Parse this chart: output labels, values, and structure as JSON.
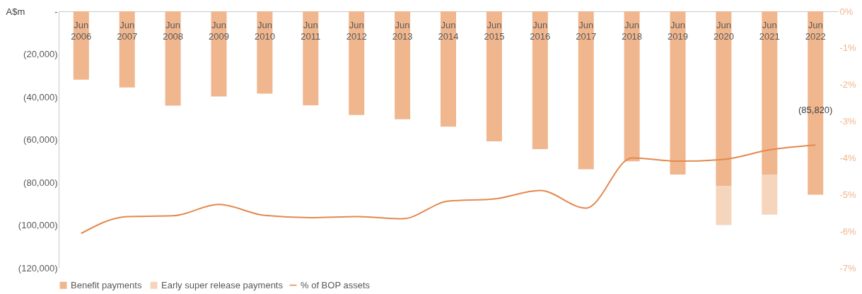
{
  "chart_data": {
    "type": "bar",
    "stacked": true,
    "ylabel": "A$m",
    "legend": "bottom",
    "categories": [
      "Jun 2006",
      "Jun 2007",
      "Jun 2008",
      "Jun 2009",
      "Jun 2010",
      "Jun 2011",
      "Jun 2012",
      "Jun 2013",
      "Jun 2014",
      "Jun 2015",
      "Jun 2016",
      "Jun 2017",
      "Jun 2018",
      "Jun 2019",
      "Jun 2020",
      "Jun 2021",
      "Jun 2022"
    ],
    "ylim": [
      -120000,
      0
    ],
    "yticks": [
      {
        "value": 0,
        "label": "-"
      },
      {
        "value": -20000,
        "label": "(20,000)"
      },
      {
        "value": -40000,
        "label": "(40,000)"
      },
      {
        "value": -60000,
        "label": "(60,000)"
      },
      {
        "value": -80000,
        "label": "(80,000)"
      },
      {
        "value": -100000,
        "label": "(100,000)"
      },
      {
        "value": -120000,
        "label": "(120,000)"
      }
    ],
    "y2lim": [
      -7,
      0
    ],
    "y2ticks": [
      {
        "value": 0,
        "label": "0%"
      },
      {
        "value": -1,
        "label": "-1%"
      },
      {
        "value": -2,
        "label": "-2%"
      },
      {
        "value": -3,
        "label": "-3%"
      },
      {
        "value": -4,
        "label": "-4%"
      },
      {
        "value": -5,
        "label": "-5%"
      },
      {
        "value": -6,
        "label": "-6%"
      },
      {
        "value": -7,
        "label": "-7%"
      }
    ],
    "series": [
      {
        "name": "Benefit payments",
        "color": "#f0b68e",
        "values": [
          -32000,
          -35600,
          -44100,
          -39800,
          -38500,
          -44000,
          -48500,
          -50500,
          -54000,
          -60800,
          -64500,
          -73900,
          -70200,
          -76400,
          -81800,
          -76400,
          -85820
        ],
        "value_labels": [
          null,
          null,
          null,
          null,
          null,
          null,
          null,
          null,
          null,
          null,
          null,
          null,
          null,
          null,
          null,
          null,
          "(85,820)"
        ]
      },
      {
        "name": "Early super release payments",
        "color": "#f6d5bd",
        "values": [
          null,
          null,
          null,
          null,
          null,
          null,
          null,
          null,
          null,
          null,
          null,
          null,
          null,
          null,
          -18200,
          -18700,
          null
        ]
      },
      {
        "name": "% of BOP assets",
        "type": "line",
        "axis": "y2",
        "color": "#e3894f",
        "values": [
          -6.06,
          -5.6,
          -5.58,
          -5.27,
          -5.57,
          -5.63,
          -5.6,
          -5.66,
          -5.18,
          -5.12,
          -4.89,
          -5.37,
          -4.0,
          -4.09,
          -4.04,
          -3.78,
          -3.65
        ]
      }
    ]
  }
}
